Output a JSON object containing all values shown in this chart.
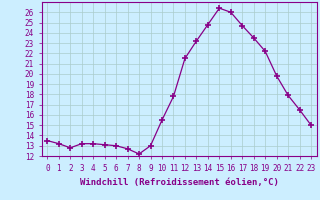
{
  "x": [
    0,
    1,
    2,
    3,
    4,
    5,
    6,
    7,
    8,
    9,
    10,
    11,
    12,
    13,
    14,
    15,
    16,
    17,
    18,
    19,
    20,
    21,
    22,
    23
  ],
  "y": [
    13.5,
    13.2,
    12.8,
    13.2,
    13.2,
    13.1,
    13.0,
    12.7,
    12.2,
    13.0,
    15.5,
    17.8,
    21.5,
    23.2,
    24.8,
    26.4,
    26.0,
    24.7,
    23.5,
    22.2,
    19.8,
    17.9,
    16.5,
    15.0
  ],
  "line_color": "#880088",
  "marker": "+",
  "marker_size": 4,
  "marker_lw": 1.2,
  "bg_color": "#cceeff",
  "grid_color": "#aacccc",
  "xlabel": "Windchill (Refroidissement éolien,°C)",
  "ylabel": "",
  "ylim": [
    12,
    27
  ],
  "xlim": [
    -0.5,
    23.5
  ],
  "yticks": [
    12,
    13,
    14,
    15,
    16,
    17,
    18,
    19,
    20,
    21,
    22,
    23,
    24,
    25,
    26
  ],
  "xticks": [
    0,
    1,
    2,
    3,
    4,
    5,
    6,
    7,
    8,
    9,
    10,
    11,
    12,
    13,
    14,
    15,
    16,
    17,
    18,
    19,
    20,
    21,
    22,
    23
  ],
  "tick_label_color": "#880088",
  "axis_color": "#880088",
  "label_fontsize": 6.5,
  "tick_fontsize": 5.5
}
